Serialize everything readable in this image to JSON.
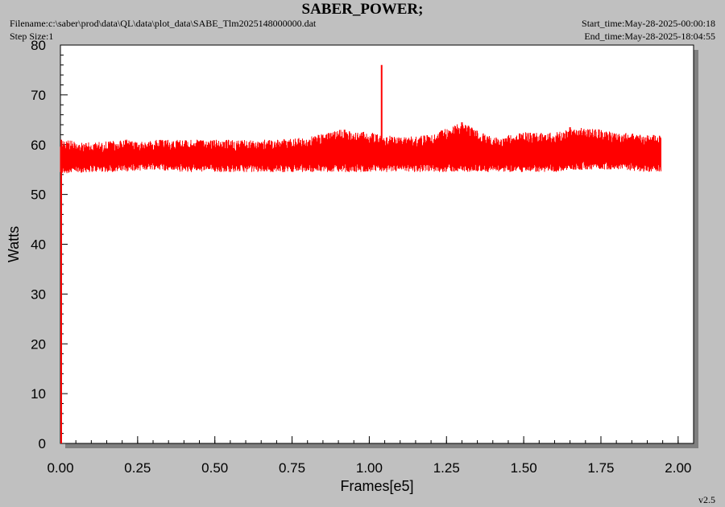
{
  "header": {
    "title": "SABER_POWER;",
    "filename": "Filename:c:\\saber\\prod\\data\\QL\\data\\plot_data\\SABE_Tlm2025148000000.dat",
    "step_size": "Step Size:1",
    "start_time": "Start_time:May-28-2025-00:00:18",
    "end_time": "End_time:May-28-2025-18:04:55"
  },
  "footer": {
    "version": "v2.5"
  },
  "colors": {
    "series": "#ff0000",
    "background": "#c0c0c0",
    "plot_area": "#ffffff",
    "shadow": "#808080"
  },
  "chart_data": {
    "type": "line",
    "xlabel": "Frames[e5]",
    "ylabel": "Watts",
    "xlim": [
      0.0,
      2.05
    ],
    "ylim": [
      0,
      80
    ],
    "xticks": [
      "0.00",
      "0.25",
      "0.50",
      "0.75",
      "1.00",
      "1.25",
      "1.50",
      "1.75",
      "2.00"
    ],
    "yticks": [
      "0",
      "10",
      "20",
      "30",
      "40",
      "50",
      "60",
      "70",
      "80"
    ],
    "grid": false,
    "series": [
      {
        "color": "#ff0000",
        "x_range": [
          0.0,
          1.945
        ],
        "mean": 57.5,
        "band_low": 54.5,
        "band_high": 61.0,
        "envelope": [
          {
            "x": 0.0,
            "low": 54.0,
            "high": 61.0
          },
          {
            "x": 0.1,
            "low": 54.5,
            "high": 60.5
          },
          {
            "x": 0.2,
            "low": 54.5,
            "high": 61.0
          },
          {
            "x": 0.3,
            "low": 55.0,
            "high": 61.0
          },
          {
            "x": 0.4,
            "low": 54.5,
            "high": 61.0
          },
          {
            "x": 0.5,
            "low": 54.5,
            "high": 61.0
          },
          {
            "x": 0.6,
            "low": 54.5,
            "high": 61.0
          },
          {
            "x": 0.7,
            "low": 54.5,
            "high": 61.0
          },
          {
            "x": 0.8,
            "low": 54.5,
            "high": 61.5
          },
          {
            "x": 0.9,
            "low": 54.5,
            "high": 63.0
          },
          {
            "x": 1.0,
            "low": 54.5,
            "high": 62.5
          },
          {
            "x": 1.1,
            "low": 54.5,
            "high": 61.5
          },
          {
            "x": 1.2,
            "low": 54.5,
            "high": 62.0
          },
          {
            "x": 1.3,
            "low": 54.5,
            "high": 64.5
          },
          {
            "x": 1.4,
            "low": 54.5,
            "high": 61.5
          },
          {
            "x": 1.5,
            "low": 54.5,
            "high": 62.5
          },
          {
            "x": 1.6,
            "low": 54.5,
            "high": 62.5
          },
          {
            "x": 1.7,
            "low": 55.0,
            "high": 63.5
          },
          {
            "x": 1.8,
            "low": 55.0,
            "high": 62.5
          },
          {
            "x": 1.9,
            "low": 54.5,
            "high": 62.0
          },
          {
            "x": 1.945,
            "low": 54.5,
            "high": 62.0
          }
        ],
        "spikes": [
          {
            "x": 1.04,
            "y": 76.0
          },
          {
            "x": 1.3,
            "y": 64.5
          },
          {
            "x": 0.92,
            "y": 63.0
          },
          {
            "x": 1.65,
            "y": 63.5
          }
        ]
      }
    ]
  }
}
